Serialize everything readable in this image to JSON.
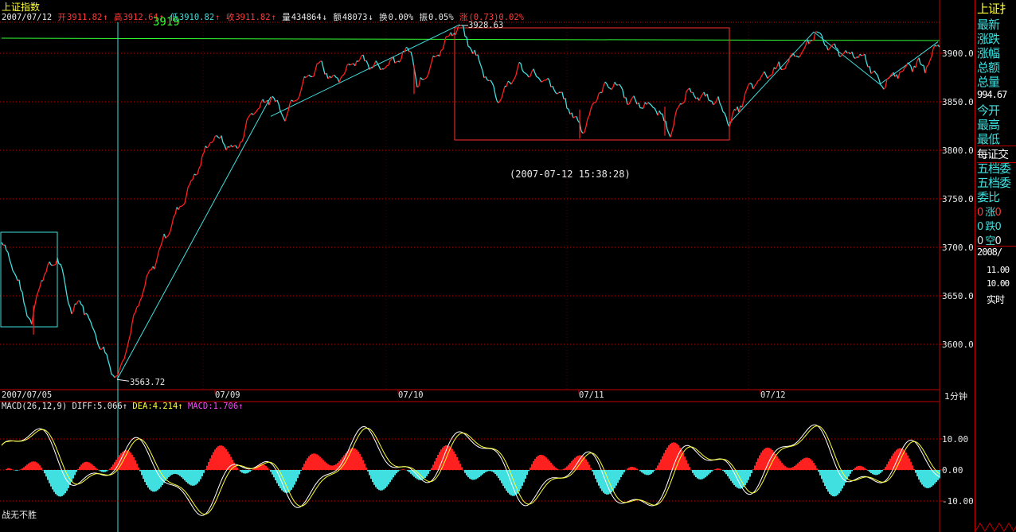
{
  "title": "上证指数",
  "info": {
    "date": "2007/07/12",
    "open_label": "开",
    "open": "3911.82",
    "high_label": "高",
    "high": "3912.64",
    "low_label": "低",
    "low": "3910.82",
    "close_label": "收",
    "close": "3911.82",
    "vol_label": "量",
    "vol": "434864",
    "amt_label": "额",
    "amt": "48073",
    "turn_label": "换",
    "turn": "0.00%",
    "amp_label": "振",
    "amp": "0.05%",
    "chg_label": "涨",
    "chg": "(0.73)0.02%"
  },
  "cursor_value": "3919",
  "timestamp": "(2007-07-12 15:38:28)",
  "high_label": "3928.63",
  "low_label": "3563.72",
  "period": "1分钟",
  "macd": {
    "name": "MACD(26,12,9)",
    "diff_label": "DIFF:",
    "diff": "5.066",
    "dea_label": "DEA:",
    "dea": "4.214",
    "macd_label": "MACD:",
    "macd": "1.706"
  },
  "footer": "战无不胜",
  "side": {
    "header": "上证扌",
    "labels": [
      "最新",
      "涨跌",
      "涨幅",
      "总额",
      "总量"
    ],
    "value1": "994.67",
    "labels2": [
      "今开",
      "最高",
      "最低"
    ],
    "tab": "每证交",
    "labels3": [
      "五档委",
      "五档委",
      "委比"
    ],
    "rows": [
      {
        "a": "0",
        "b": "涨",
        "c": "0"
      },
      {
        "a": "0",
        "b": "跌",
        "c": "0"
      },
      {
        "a": "0",
        "b": "空",
        "c": "0"
      }
    ],
    "date": "2008/",
    "p1": "11.00",
    "p2": "10.00",
    "rt": "实时"
  },
  "colors": {
    "up": "#ff2020",
    "down": "#40e0e0",
    "diff": "#ffffff",
    "dea": "#ffff33",
    "grid": "#c00000",
    "line": "#33ff33"
  },
  "chart_data": [
    {
      "type": "candlestick-line",
      "x_ticks": [
        "2007/07/05",
        "07/09",
        "07/10",
        "07/11",
        "07/12"
      ],
      "y_ticks": [
        3900,
        3850,
        3800,
        3750,
        3700,
        3650,
        3600
      ],
      "ylim": [
        3560,
        3930
      ],
      "high_point": 3928.63,
      "low_point": 3563.72,
      "anchors": [
        [
          0,
          3705
        ],
        [
          10,
          3690
        ],
        [
          22,
          3660
        ],
        [
          38,
          3620
        ],
        [
          44,
          3650
        ],
        [
          50,
          3668
        ],
        [
          70,
          3690
        ],
        [
          88,
          3635
        ],
        [
          100,
          3645
        ],
        [
          115,
          3615
        ],
        [
          145,
          3563.72
        ],
        [
          175,
          3650
        ],
        [
          205,
          3710
        ],
        [
          235,
          3760
        ],
        [
          265,
          3815
        ],
        [
          295,
          3800
        ],
        [
          315,
          3840
        ],
        [
          340,
          3855
        ],
        [
          355,
          3835
        ],
        [
          380,
          3870
        ],
        [
          400,
          3890
        ],
        [
          420,
          3870
        ],
        [
          445,
          3895
        ],
        [
          480,
          3885
        ],
        [
          500,
          3895
        ],
        [
          515,
          3905
        ],
        [
          522,
          3862
        ],
        [
          540,
          3890
        ],
        [
          560,
          3915
        ],
        [
          575,
          3928.63
        ],
        [
          600,
          3890
        ],
        [
          625,
          3852
        ],
        [
          650,
          3885
        ],
        [
          675,
          3875
        ],
        [
          700,
          3860
        ],
        [
          730,
          3820
        ],
        [
          750,
          3860
        ],
        [
          770,
          3870
        ],
        [
          790,
          3850
        ],
        [
          820,
          3845
        ],
        [
          840,
          3820
        ],
        [
          860,
          3860
        ],
        [
          880,
          3855
        ],
        [
          900,
          3850
        ],
        [
          915,
          3828
        ],
        [
          940,
          3865
        ],
        [
          965,
          3880
        ],
        [
          985,
          3890
        ],
        [
          1005,
          3900
        ],
        [
          1022,
          3922
        ],
        [
          1040,
          3905
        ],
        [
          1060,
          3900
        ],
        [
          1085,
          3895
        ],
        [
          1105,
          3868
        ],
        [
          1125,
          3880
        ],
        [
          1150,
          3890
        ],
        [
          1160,
          3885
        ],
        [
          1178,
          3911.82
        ]
      ],
      "anchor_x_unit": "minute-index"
    },
    {
      "type": "macd",
      "y_ticks": [
        10.0,
        0.0,
        -10.0
      ],
      "ylim": [
        -14,
        19
      ],
      "diff": 5.066,
      "dea": 4.214,
      "macd": 1.706
    }
  ]
}
